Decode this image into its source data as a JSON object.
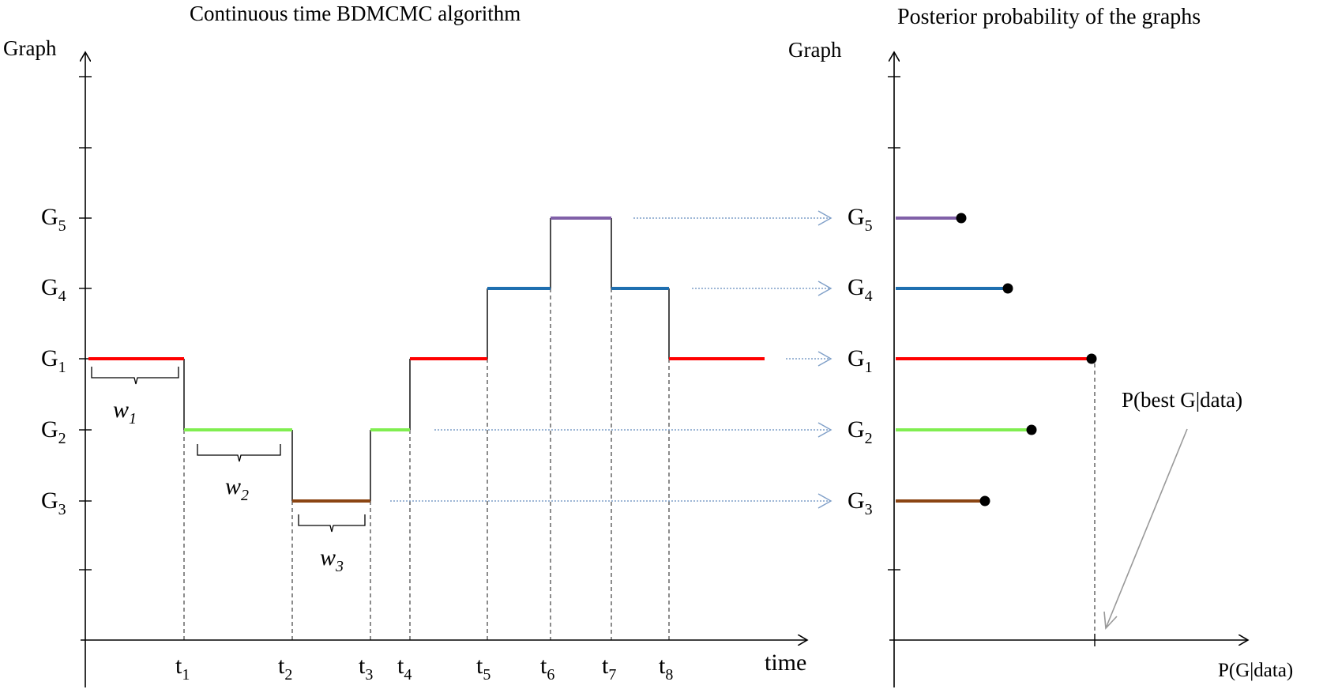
{
  "left": {
    "title": "Continuous time BDMCMC  algorithm",
    "ylabel": "Graph",
    "xlabel": "time",
    "graph_labels": [
      {
        "letter": "G",
        "sub": "5"
      },
      {
        "letter": "G",
        "sub": "4"
      },
      {
        "letter": "G",
        "sub": "1"
      },
      {
        "letter": "G",
        "sub": "2"
      },
      {
        "letter": "G",
        "sub": "3"
      }
    ],
    "time_labels": [
      {
        "letter": "t",
        "sub": "1"
      },
      {
        "letter": "t",
        "sub": "2"
      },
      {
        "letter": "t",
        "sub": "3"
      },
      {
        "letter": "t",
        "sub": "4"
      },
      {
        "letter": "t",
        "sub": "5"
      },
      {
        "letter": "t",
        "sub": "6"
      },
      {
        "letter": "t",
        "sub": "7"
      },
      {
        "letter": "t",
        "sub": "8"
      }
    ],
    "waiting_labels": [
      {
        "letter": "w",
        "sub": "1"
      },
      {
        "letter": "w",
        "sub": "2"
      },
      {
        "letter": "w",
        "sub": "3"
      }
    ],
    "segments": [
      {
        "graph": "G1",
        "color": "#ff0000"
      },
      {
        "graph": "G2",
        "color": "#80ee50"
      },
      {
        "graph": "G3",
        "color": "#8b4513"
      },
      {
        "graph": "G2",
        "color": "#80ee50"
      },
      {
        "graph": "G1",
        "color": "#ff0000"
      },
      {
        "graph": "G4",
        "color": "#1f6fb0"
      },
      {
        "graph": "G5",
        "color": "#8060a8"
      },
      {
        "graph": "G4",
        "color": "#1f6fb0"
      },
      {
        "graph": "G1",
        "color": "#ff0000"
      }
    ]
  },
  "right": {
    "title": "Posterior probability of  the graphs",
    "ylabel": "Graph",
    "xlabel": "P(G|data)",
    "annotation": "P(best G|data)",
    "graph_labels": [
      {
        "letter": "G",
        "sub": "5"
      },
      {
        "letter": "G",
        "sub": "4"
      },
      {
        "letter": "G",
        "sub": "1"
      },
      {
        "letter": "G",
        "sub": "2"
      },
      {
        "letter": "G",
        "sub": "3"
      }
    ],
    "bars": [
      {
        "graph": "G5",
        "color": "#8060a8"
      },
      {
        "graph": "G4",
        "color": "#1f6fb0"
      },
      {
        "graph": "G1",
        "color": "#ff0000"
      },
      {
        "graph": "G2",
        "color": "#80ee50"
      },
      {
        "graph": "G3",
        "color": "#8b4513"
      }
    ]
  }
}
